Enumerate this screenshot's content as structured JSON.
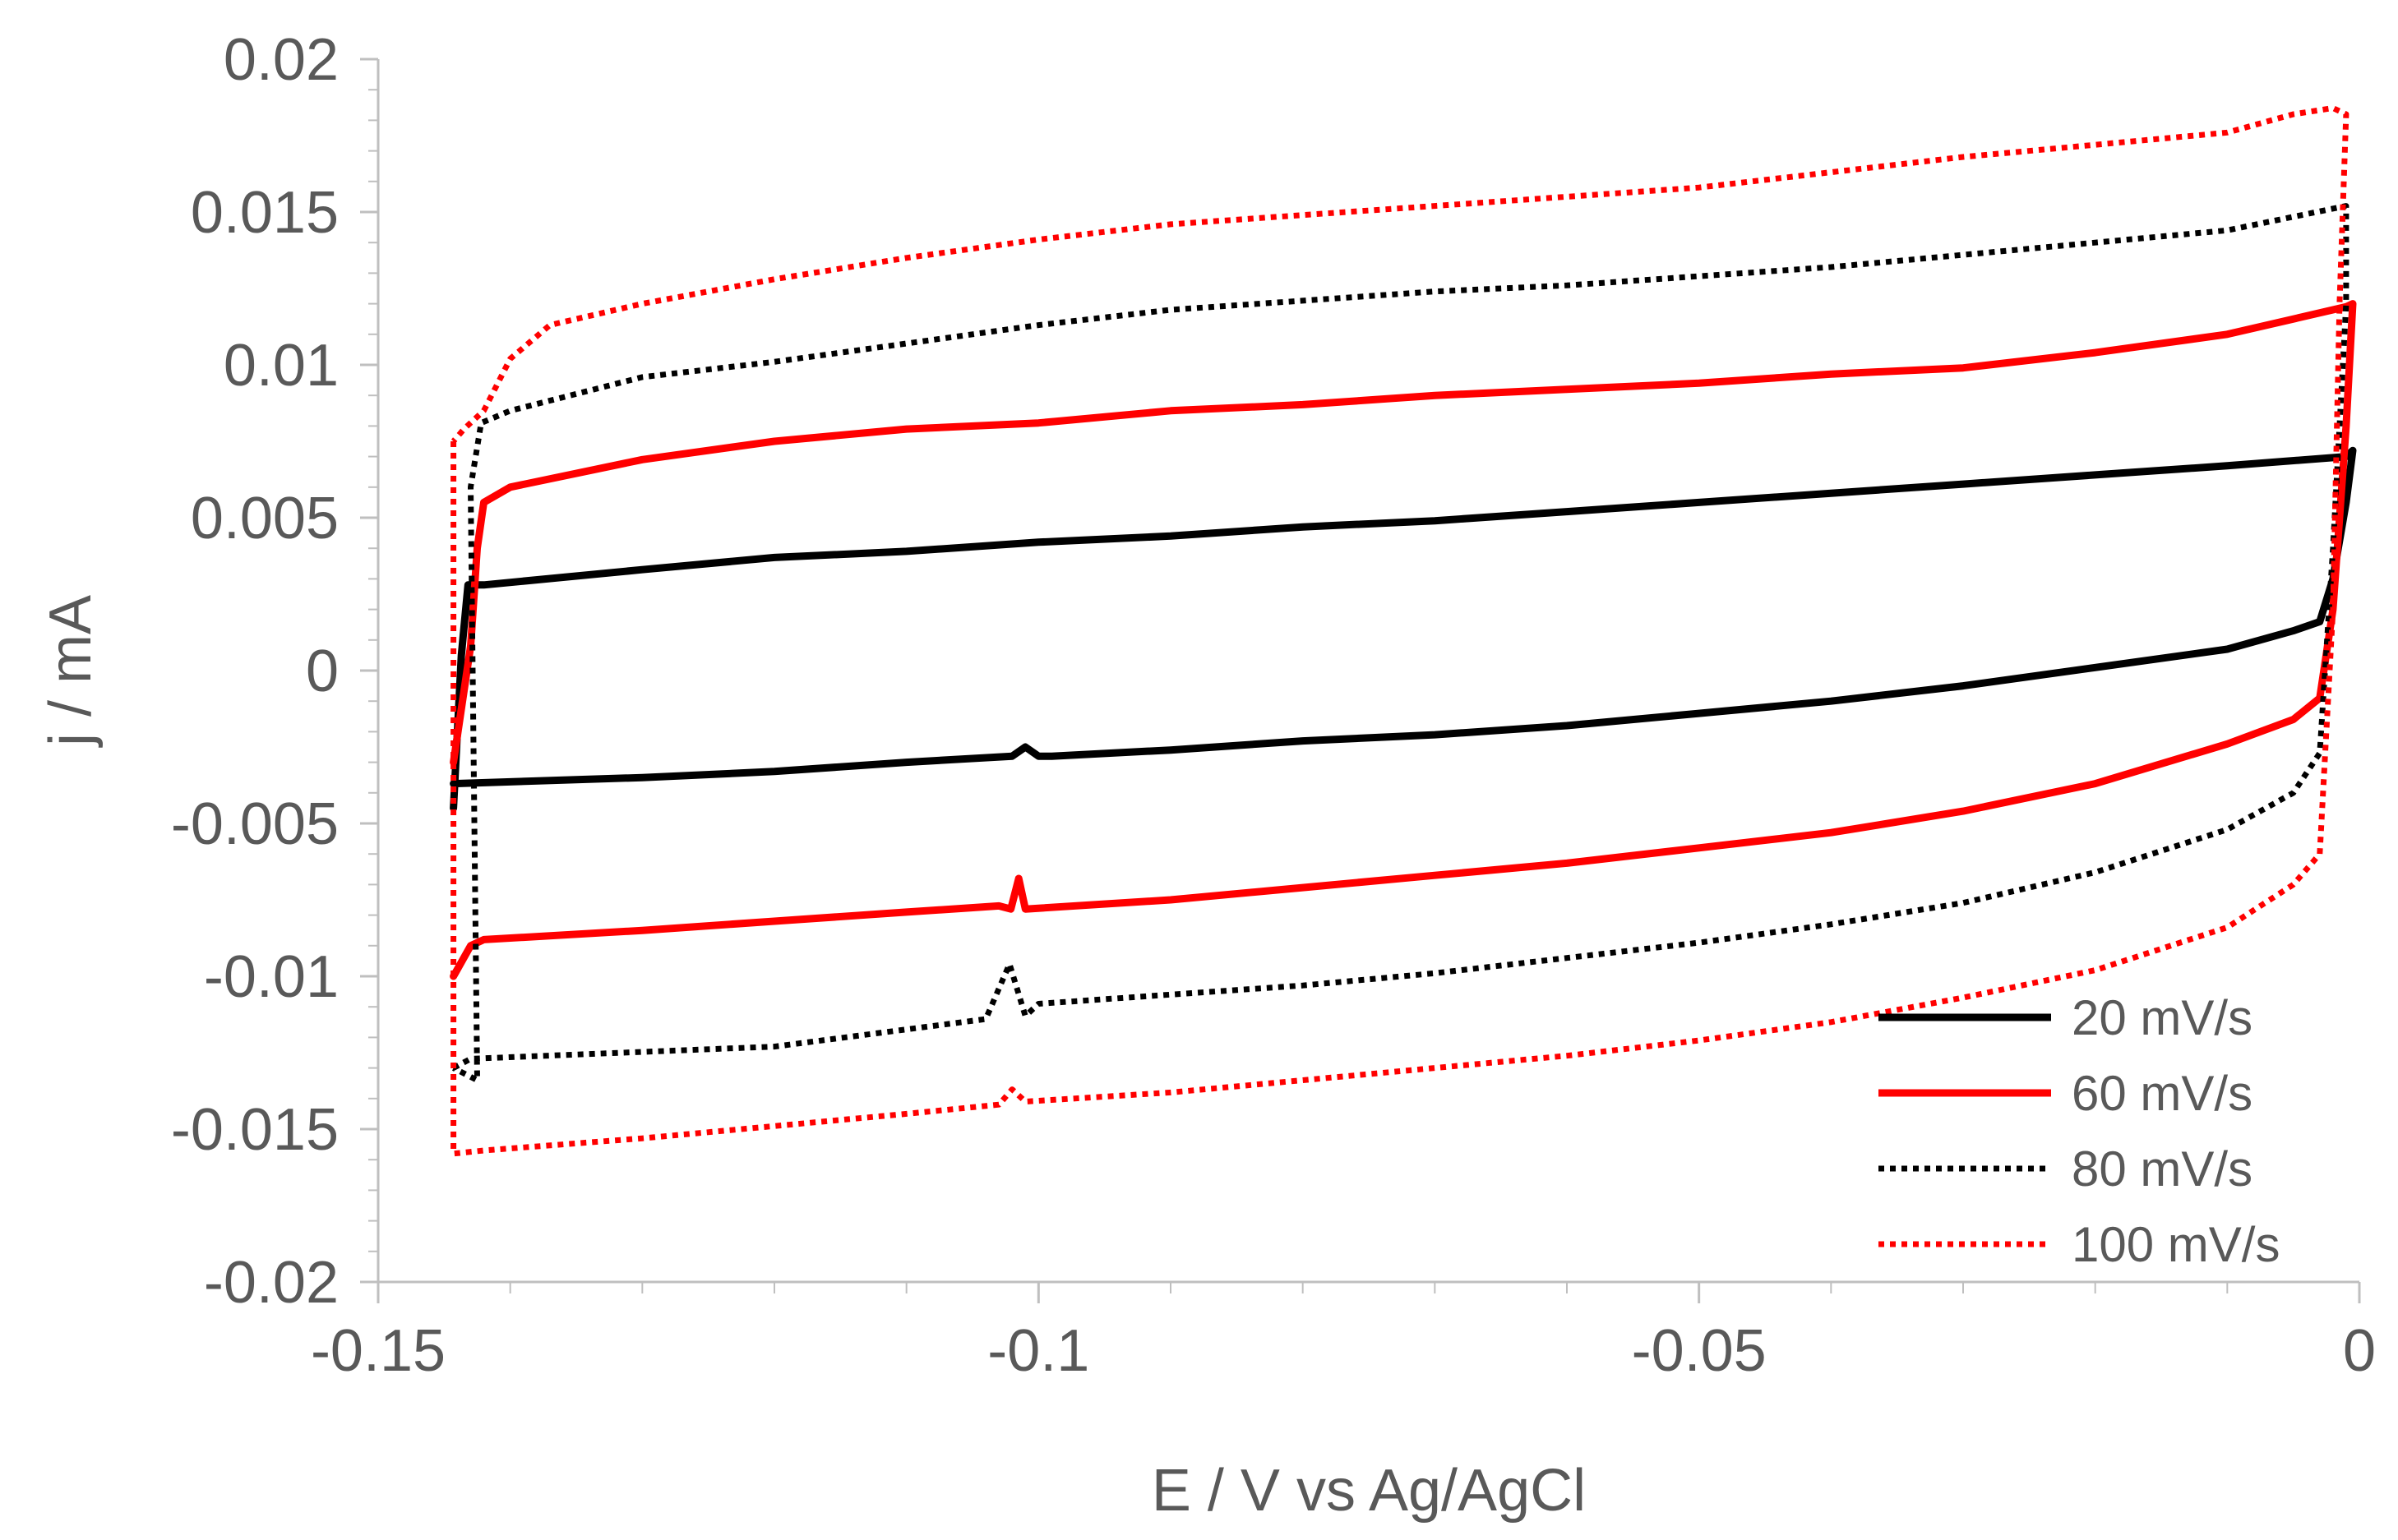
{
  "chart_data": {
    "type": "line",
    "title": "",
    "xlabel": "E / V vs Ag/AgCl",
    "ylabel": "j / mA",
    "xlim": [
      -0.15,
      0
    ],
    "ylim": [
      -0.02,
      0.02
    ],
    "x_ticks": [
      -0.15,
      -0.1,
      -0.05,
      0
    ],
    "x_tick_labels": [
      "-0.15",
      "-0.1",
      "-0.05",
      "0"
    ],
    "y_ticks": [
      0.02,
      0.015,
      0.01,
      0.005,
      0,
      -0.005,
      -0.01,
      -0.015,
      -0.02
    ],
    "y_tick_labels": [
      "0.02",
      "0.015",
      "0.01",
      "0.005",
      "0",
      "-0.005",
      "-0.01",
      "-0.015",
      "-0.02"
    ],
    "grid": false,
    "legend_position": "bottom-right",
    "series": [
      {
        "name": "20 mV/s",
        "color": "#000000",
        "style": "solid",
        "points": [
          [
            -0.1443,
            -0.0045
          ],
          [
            -0.1437,
            0.0005
          ],
          [
            -0.1432,
            0.0028
          ],
          [
            -0.142,
            0.0028
          ],
          [
            -0.13,
            0.0033
          ],
          [
            -0.12,
            0.0037
          ],
          [
            -0.11,
            0.0039
          ],
          [
            -0.1,
            0.0042
          ],
          [
            -0.09,
            0.0044
          ],
          [
            -0.08,
            0.0047
          ],
          [
            -0.07,
            0.0049
          ],
          [
            -0.06,
            0.0052
          ],
          [
            -0.05,
            0.0055
          ],
          [
            -0.04,
            0.0058
          ],
          [
            -0.03,
            0.0061
          ],
          [
            -0.02,
            0.0064
          ],
          [
            -0.01,
            0.0067
          ],
          [
            -0.001,
            0.007
          ],
          [
            -0.0005,
            0.0072
          ],
          [
            -0.001,
            0.0055
          ],
          [
            -0.002,
            0.003
          ],
          [
            -0.003,
            0.0016
          ],
          [
            -0.005,
            0.0013
          ],
          [
            -0.01,
            0.0007
          ],
          [
            -0.02,
            0.0001
          ],
          [
            -0.03,
            -0.0005
          ],
          [
            -0.04,
            -0.001
          ],
          [
            -0.05,
            -0.0014
          ],
          [
            -0.06,
            -0.0018
          ],
          [
            -0.07,
            -0.0021
          ],
          [
            -0.08,
            -0.0023
          ],
          [
            -0.09,
            -0.0026
          ],
          [
            -0.099,
            -0.0028
          ],
          [
            -0.1,
            -0.0028
          ],
          [
            -0.101,
            -0.0025
          ],
          [
            -0.102,
            -0.0028
          ],
          [
            -0.11,
            -0.003
          ],
          [
            -0.12,
            -0.0033
          ],
          [
            -0.13,
            -0.0035
          ],
          [
            -0.1443,
            -0.0037
          ]
        ]
      },
      {
        "name": "60 mV/s",
        "color": "#ff0000",
        "style": "solid",
        "points": [
          [
            -0.1443,
            -0.01
          ],
          [
            -0.143,
            -0.009
          ],
          [
            -0.142,
            -0.0088
          ],
          [
            -0.13,
            -0.0085
          ],
          [
            -0.12,
            -0.0082
          ],
          [
            -0.11,
            -0.0079
          ],
          [
            -0.103,
            -0.0077
          ],
          [
            -0.1021,
            -0.0078
          ],
          [
            -0.1015,
            -0.0068
          ],
          [
            -0.101,
            -0.0078
          ],
          [
            -0.09,
            -0.0075
          ],
          [
            -0.08,
            -0.0071
          ],
          [
            -0.07,
            -0.0067
          ],
          [
            -0.06,
            -0.0063
          ],
          [
            -0.05,
            -0.0058
          ],
          [
            -0.04,
            -0.0053
          ],
          [
            -0.03,
            -0.0046
          ],
          [
            -0.02,
            -0.0037
          ],
          [
            -0.01,
            -0.0024
          ],
          [
            -0.005,
            -0.0016
          ],
          [
            -0.003,
            -0.0009
          ],
          [
            -0.002,
            0.002
          ],
          [
            -0.001,
            0.008
          ],
          [
            -0.0005,
            0.012
          ],
          [
            -0.001,
            0.0119
          ],
          [
            -0.01,
            0.011
          ],
          [
            -0.02,
            0.0104
          ],
          [
            -0.03,
            0.0099
          ],
          [
            -0.04,
            0.0097
          ],
          [
            -0.05,
            0.0094
          ],
          [
            -0.06,
            0.0092
          ],
          [
            -0.07,
            0.009
          ],
          [
            -0.08,
            0.0087
          ],
          [
            -0.09,
            0.0085
          ],
          [
            -0.1,
            0.0081
          ],
          [
            -0.11,
            0.0079
          ],
          [
            -0.12,
            0.0075
          ],
          [
            -0.13,
            0.0069
          ],
          [
            -0.14,
            0.006
          ],
          [
            -0.142,
            0.0055
          ],
          [
            -0.1425,
            0.004
          ],
          [
            -0.143,
            0.0008
          ],
          [
            -0.1443,
            -0.003
          ]
        ]
      },
      {
        "name": "80 mV/s",
        "color": "#000000",
        "style": "dotted",
        "points": [
          [
            -0.1443,
            -0.013
          ],
          [
            -0.143,
            -0.0127
          ],
          [
            -0.12,
            -0.0123
          ],
          [
            -0.104,
            -0.0114
          ],
          [
            -0.1022,
            -0.0096
          ],
          [
            -0.101,
            -0.0113
          ],
          [
            -0.1,
            -0.0109
          ],
          [
            -0.09,
            -0.0106
          ],
          [
            -0.08,
            -0.0103
          ],
          [
            -0.07,
            -0.0099
          ],
          [
            -0.06,
            -0.0094
          ],
          [
            -0.05,
            -0.0089
          ],
          [
            -0.04,
            -0.0083
          ],
          [
            -0.03,
            -0.0076
          ],
          [
            -0.02,
            -0.0066
          ],
          [
            -0.01,
            -0.0052
          ],
          [
            -0.005,
            -0.004
          ],
          [
            -0.003,
            -0.0027
          ],
          [
            -0.002,
            0.004
          ],
          [
            -0.001,
            0.012
          ],
          [
            -0.001,
            0.0152
          ],
          [
            -0.01,
            0.0144
          ],
          [
            -0.02,
            0.014
          ],
          [
            -0.03,
            0.0136
          ],
          [
            -0.04,
            0.0132
          ],
          [
            -0.05,
            0.0129
          ],
          [
            -0.06,
            0.0126
          ],
          [
            -0.07,
            0.0124
          ],
          [
            -0.08,
            0.0121
          ],
          [
            -0.09,
            0.0118
          ],
          [
            -0.1,
            0.0113
          ],
          [
            -0.11,
            0.0107
          ],
          [
            -0.12,
            0.0101
          ],
          [
            -0.13,
            0.0096
          ],
          [
            -0.14,
            0.0085
          ],
          [
            -0.1422,
            0.0081
          ],
          [
            -0.143,
            0.006
          ],
          [
            -0.1425,
            -0.0134
          ],
          [
            -0.1443,
            -0.013
          ]
        ]
      },
      {
        "name": "100 mV/s",
        "color": "#ff0000",
        "style": "dotted",
        "points": [
          [
            -0.1443,
            0.0075
          ],
          [
            -0.1443,
            -0.0158
          ],
          [
            -0.142,
            -0.0157
          ],
          [
            -0.13,
            -0.0153
          ],
          [
            -0.12,
            -0.0149
          ],
          [
            -0.11,
            -0.0145
          ],
          [
            -0.103,
            -0.0142
          ],
          [
            -0.102,
            -0.0137
          ],
          [
            -0.101,
            -0.0141
          ],
          [
            -0.09,
            -0.0138
          ],
          [
            -0.08,
            -0.0134
          ],
          [
            -0.07,
            -0.013
          ],
          [
            -0.06,
            -0.0126
          ],
          [
            -0.05,
            -0.0121
          ],
          [
            -0.04,
            -0.0115
          ],
          [
            -0.03,
            -0.0107
          ],
          [
            -0.02,
            -0.0098
          ],
          [
            -0.01,
            -0.0084
          ],
          [
            -0.005,
            -0.007
          ],
          [
            -0.003,
            -0.006
          ],
          [
            -0.002,
            0.002
          ],
          [
            -0.0015,
            0.012
          ],
          [
            -0.001,
            0.0182
          ],
          [
            -0.002,
            0.0184
          ],
          [
            -0.005,
            0.0182
          ],
          [
            -0.01,
            0.0176
          ],
          [
            -0.02,
            0.0172
          ],
          [
            -0.03,
            0.0168
          ],
          [
            -0.04,
            0.0163
          ],
          [
            -0.05,
            0.0158
          ],
          [
            -0.06,
            0.0155
          ],
          [
            -0.07,
            0.0152
          ],
          [
            -0.08,
            0.0149
          ],
          [
            -0.09,
            0.0146
          ],
          [
            -0.1,
            0.0141
          ],
          [
            -0.11,
            0.0135
          ],
          [
            -0.12,
            0.0128
          ],
          [
            -0.13,
            0.012
          ],
          [
            -0.137,
            0.0113
          ],
          [
            -0.14,
            0.0102
          ],
          [
            -0.142,
            0.0085
          ],
          [
            -0.1435,
            0.0079
          ],
          [
            -0.1443,
            0.0075
          ]
        ]
      }
    ]
  }
}
